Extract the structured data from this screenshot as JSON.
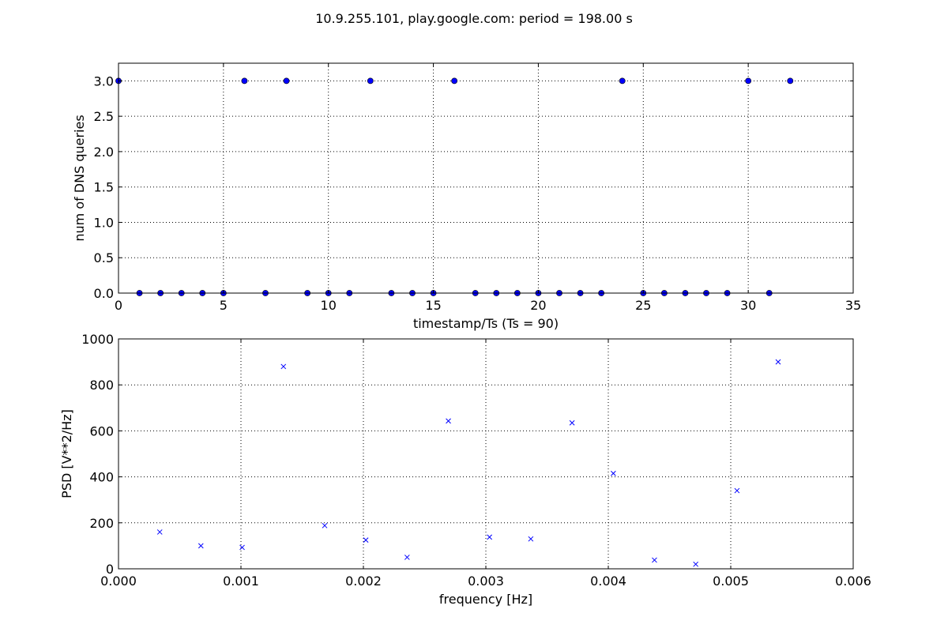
{
  "figure": {
    "suptitle": "10.9.255.101, play.google.com: period = 198.00 s"
  },
  "chart_data": [
    {
      "type": "scatter",
      "title": "",
      "xlabel": "timestamp/Ts (Ts = 90)",
      "ylabel": "num of DNS queries",
      "xlim": [
        0,
        35
      ],
      "ylim": [
        0,
        3.25
      ],
      "xticks": [
        "0",
        "5",
        "10",
        "15",
        "20",
        "25",
        "30",
        "35"
      ],
      "yticks": [
        "0.0",
        "0.5",
        "1.0",
        "1.5",
        "2.0",
        "2.5",
        "3.0"
      ],
      "grid": true,
      "marker": "circle",
      "color": "#0000ff",
      "x": [
        0,
        1,
        2,
        3,
        4,
        5,
        6,
        7,
        8,
        9,
        10,
        11,
        12,
        13,
        14,
        15,
        16,
        17,
        18,
        19,
        20,
        21,
        22,
        23,
        24,
        25,
        26,
        27,
        28,
        29,
        30,
        31,
        32
      ],
      "y": [
        3,
        0,
        0,
        0,
        0,
        0,
        3,
        0,
        3,
        0,
        0,
        0,
        3,
        0,
        0,
        0,
        3,
        0,
        0,
        0,
        0,
        0,
        0,
        0,
        3,
        0,
        0,
        0,
        0,
        0,
        3,
        0,
        3
      ]
    },
    {
      "type": "scatter",
      "title": "",
      "xlabel": "frequency [Hz]",
      "ylabel": "PSD [V**2/Hz]",
      "xlim": [
        0,
        0.006
      ],
      "ylim": [
        0,
        1000
      ],
      "xticks": [
        "0.000",
        "0.001",
        "0.002",
        "0.003",
        "0.004",
        "0.005",
        "0.006"
      ],
      "yticks": [
        "0",
        "200",
        "400",
        "600",
        "800",
        "1000"
      ],
      "grid": true,
      "marker": "x",
      "color": "#0000ff",
      "x": [
        0.000337,
        0.000673,
        0.00101,
        0.001347,
        0.001684,
        0.00202,
        0.002357,
        0.002694,
        0.00303,
        0.003367,
        0.003704,
        0.004041,
        0.004377,
        0.004714,
        0.005051,
        0.005387
      ],
      "y": [
        160,
        100,
        93,
        880,
        188,
        125,
        50,
        643,
        138,
        130,
        635,
        415,
        38,
        20,
        340,
        900
      ]
    }
  ]
}
